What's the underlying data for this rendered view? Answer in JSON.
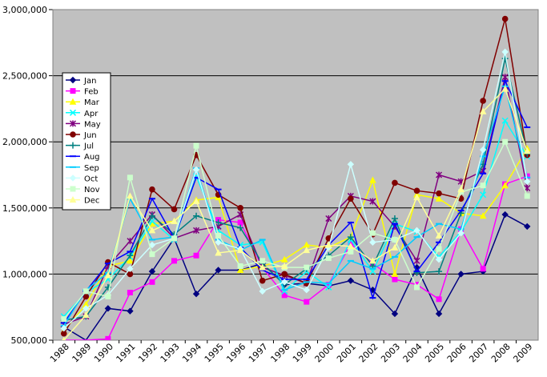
{
  "chart_data": {
    "type": "line",
    "title": "",
    "xlabel": "",
    "ylabel": "",
    "x": [
      "1988",
      "1989",
      "1990",
      "1991",
      "1992",
      "1993",
      "1994",
      "1995",
      "1996",
      "1997",
      "1998",
      "1999",
      "2000",
      "2001",
      "2002",
      "2003",
      "2004",
      "2005",
      "2006",
      "2007",
      "2008",
      "2009"
    ],
    "y_ticks": [
      "500,000",
      "1,000,000",
      "1,500,000",
      "2,000,000",
      "2,500,000",
      "3,000,000"
    ],
    "ylim": [
      500000,
      3000000
    ],
    "grid": "horizontal major gridlines",
    "plot_area_color": "#c0c0c0",
    "legend_placement": "left",
    "series": [
      {
        "name": "Jan",
        "color": "#000080",
        "marker": "diamond",
        "values": [
          600000,
          420000,
          740000,
          720000,
          1020000,
          1270000,
          850000,
          1030000,
          1030000,
          1080000,
          920000,
          930000,
          910000,
          950000,
          880000,
          700000,
          1050000,
          700000,
          1000000,
          1020000,
          1450000,
          1360000
        ]
      },
      {
        "name": "Feb",
        "color": "#ff00ff",
        "marker": "square",
        "values": [
          420000,
          350000,
          510000,
          860000,
          940000,
          1100000,
          1140000,
          1410000,
          1390000,
          1050000,
          840000,
          790000,
          920000,
          1230000,
          1080000,
          960000,
          920000,
          810000,
          1340000,
          1040000,
          1680000,
          1740000
        ]
      },
      {
        "name": "Mar",
        "color": "#ffff00",
        "marker": "triangle",
        "values": [
          570000,
          770000,
          1060000,
          1100000,
          1380000,
          1400000,
          1560000,
          1580000,
          1030000,
          1060000,
          1110000,
          1220000,
          1200000,
          1280000,
          1710000,
          1000000,
          1600000,
          1570000,
          1460000,
          1440000,
          1670000,
          1950000
        ]
      },
      {
        "name": "Apr",
        "color": "#00ffff",
        "marker": "x",
        "values": [
          680000,
          860000,
          960000,
          1130000,
          1400000,
          1260000,
          1740000,
          1330000,
          1220000,
          1240000,
          870000,
          1020000,
          900000,
          1260000,
          1020000,
          1380000,
          1320000,
          1130000,
          1320000,
          1600000,
          2160000,
          1890000
        ]
      },
      {
        "name": "May",
        "color": "#800080",
        "marker": "star",
        "values": [
          620000,
          680000,
          1060000,
          1250000,
          1450000,
          1270000,
          1330000,
          1360000,
          1450000,
          1050000,
          990000,
          930000,
          1420000,
          1590000,
          1550000,
          1360000,
          1100000,
          1750000,
          1700000,
          1780000,
          2490000,
          1650000
        ]
      },
      {
        "name": "Jun",
        "color": "#800000",
        "marker": "circle",
        "values": [
          550000,
          830000,
          1090000,
          1000000,
          1640000,
          1490000,
          1900000,
          1600000,
          1500000,
          950000,
          1000000,
          930000,
          1270000,
          1570000,
          1300000,
          1690000,
          1630000,
          1610000,
          1570000,
          2310000,
          2930000,
          1900000
        ]
      },
      {
        "name": "Jul",
        "color": "#008080",
        "marker": "plus",
        "values": [
          650000,
          680000,
          900000,
          1140000,
          1440000,
          1300000,
          1440000,
          1390000,
          1350000,
          1080000,
          920000,
          1040000,
          1140000,
          1280000,
          1060000,
          1420000,
          1010000,
          1020000,
          1460000,
          1830000,
          2630000,
          1910000
        ]
      },
      {
        "name": "Aug",
        "color": "#0000ff",
        "marker": "dash",
        "values": [
          630000,
          870000,
          1080000,
          1170000,
          1570000,
          1270000,
          1730000,
          1640000,
          1200000,
          1030000,
          960000,
          960000,
          1220000,
          1390000,
          820000,
          1380000,
          1020000,
          1240000,
          1480000,
          1760000,
          2460000,
          2110000
        ]
      },
      {
        "name": "Sep",
        "color": "#00ccff",
        "marker": "dash",
        "values": [
          610000,
          880000,
          1010000,
          1570000,
          1260000,
          1280000,
          1800000,
          1260000,
          1180000,
          1260000,
          880000,
          940000,
          930000,
          1100000,
          1040000,
          1130000,
          1280000,
          1380000,
          1340000,
          1890000,
          2420000,
          1730000
        ]
      },
      {
        "name": "Oct",
        "color": "#ccffff",
        "marker": "diamond",
        "values": [
          590000,
          740000,
          840000,
          1040000,
          1220000,
          1270000,
          1790000,
          1240000,
          1190000,
          870000,
          940000,
          880000,
          1200000,
          1830000,
          1240000,
          1260000,
          1330000,
          1110000,
          1310000,
          1940000,
          2680000,
          1700000
        ]
      },
      {
        "name": "Nov",
        "color": "#ccffcc",
        "marker": "square",
        "values": [
          660000,
          870000,
          830000,
          1730000,
          1150000,
          1270000,
          1970000,
          1290000,
          1060000,
          1100000,
          1050000,
          1050000,
          1120000,
          1170000,
          1310000,
          1260000,
          900000,
          1190000,
          1620000,
          1670000,
          2000000,
          1590000
        ]
      },
      {
        "name": "Dec",
        "color": "#ffff99",
        "marker": "triangle",
        "values": [
          500000,
          690000,
          990000,
          1590000,
          1330000,
          1400000,
          1550000,
          1160000,
          1180000,
          1050000,
          1060000,
          1180000,
          1220000,
          1210000,
          1100000,
          1200000,
          1580000,
          1290000,
          1640000,
          2230000,
          2400000,
          1930000
        ]
      }
    ]
  }
}
